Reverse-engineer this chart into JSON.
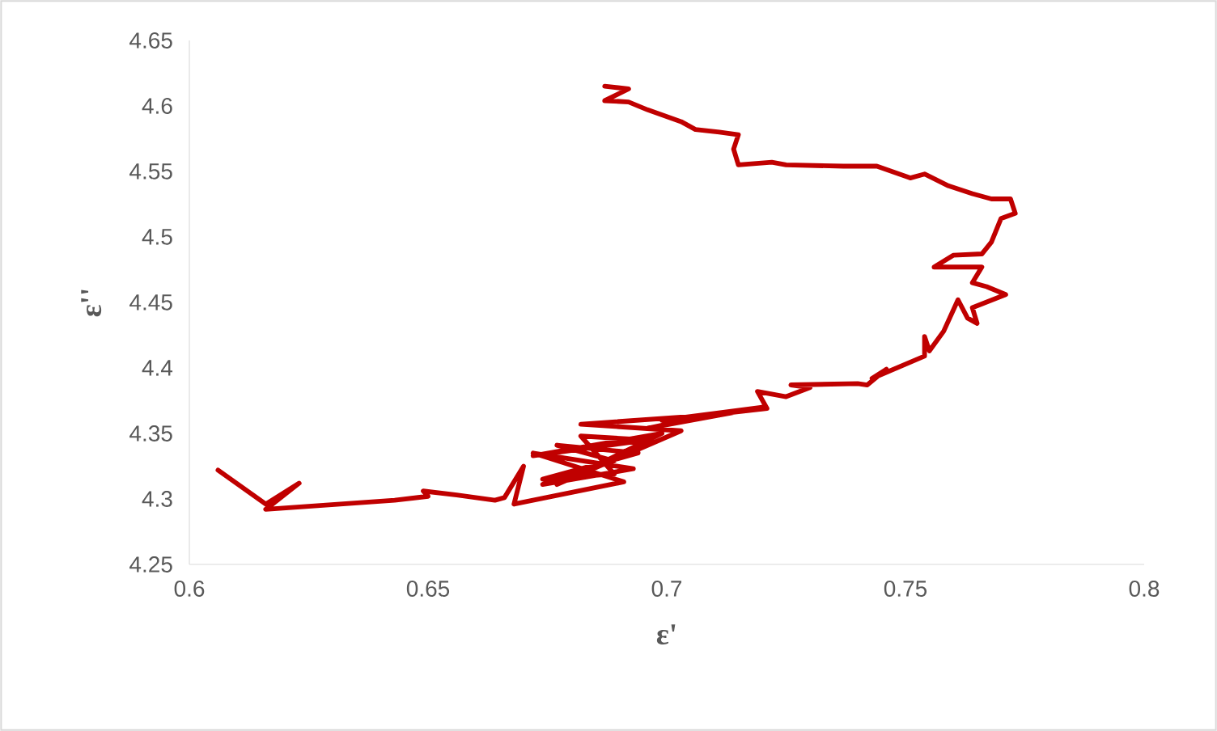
{
  "chart_data": {
    "type": "line",
    "xlabel": "ε'",
    "ylabel": "ε''",
    "xlim": [
      0.6,
      0.8
    ],
    "ylim": [
      4.25,
      4.65
    ],
    "xticks": [
      0.6,
      0.65,
      0.7,
      0.75,
      0.8
    ],
    "yticks": [
      4.25,
      4.3,
      4.35,
      4.4,
      4.45,
      4.5,
      4.55,
      4.6,
      4.65
    ],
    "grid": false,
    "series": [
      {
        "color": "#c00000",
        "x": [
          0.606,
          0.616,
          0.623,
          0.616,
          0.643,
          0.65,
          0.649,
          0.656,
          0.664,
          0.666,
          0.67,
          0.668,
          0.691,
          0.672,
          0.693,
          0.674,
          0.689,
          0.677,
          0.694,
          0.674,
          0.689,
          0.682,
          0.696,
          0.672,
          0.699,
          0.677,
          0.703,
          0.682,
          0.709,
          0.696,
          0.72,
          0.699,
          0.721,
          0.719,
          0.725,
          0.73,
          0.726,
          0.74,
          0.742,
          0.746,
          0.743,
          0.754,
          0.754,
          0.755,
          0.758,
          0.761,
          0.763,
          0.765,
          0.764,
          0.771,
          0.767,
          0.764,
          0.766,
          0.756,
          0.76,
          0.766,
          0.768,
          0.77,
          0.773,
          0.772,
          0.768,
          0.764,
          0.759,
          0.754,
          0.751,
          0.744,
          0.737,
          0.725,
          0.722,
          0.715,
          0.714,
          0.715,
          0.711,
          0.706,
          0.703,
          0.696,
          0.692,
          0.687,
          0.692,
          0.687
        ],
        "values": [
          4.322,
          4.296,
          4.312,
          4.292,
          4.299,
          4.302,
          4.306,
          4.303,
          4.299,
          4.301,
          4.325,
          4.296,
          4.313,
          4.335,
          4.323,
          4.311,
          4.329,
          4.341,
          4.335,
          4.315,
          4.319,
          4.348,
          4.345,
          4.333,
          4.35,
          4.311,
          4.352,
          4.357,
          4.364,
          4.354,
          4.37,
          4.36,
          4.369,
          4.382,
          4.378,
          4.385,
          4.387,
          4.388,
          4.387,
          4.399,
          4.392,
          4.409,
          4.424,
          4.413,
          4.428,
          4.452,
          4.438,
          4.434,
          4.446,
          4.456,
          4.462,
          4.465,
          4.477,
          4.477,
          4.486,
          4.487,
          4.496,
          4.514,
          4.518,
          4.529,
          4.529,
          4.533,
          4.539,
          4.548,
          4.545,
          4.554,
          4.554,
          4.555,
          4.557,
          4.555,
          4.567,
          4.578,
          4.58,
          4.582,
          4.588,
          4.597,
          4.603,
          4.604,
          4.613,
          4.615
        ]
      }
    ]
  }
}
